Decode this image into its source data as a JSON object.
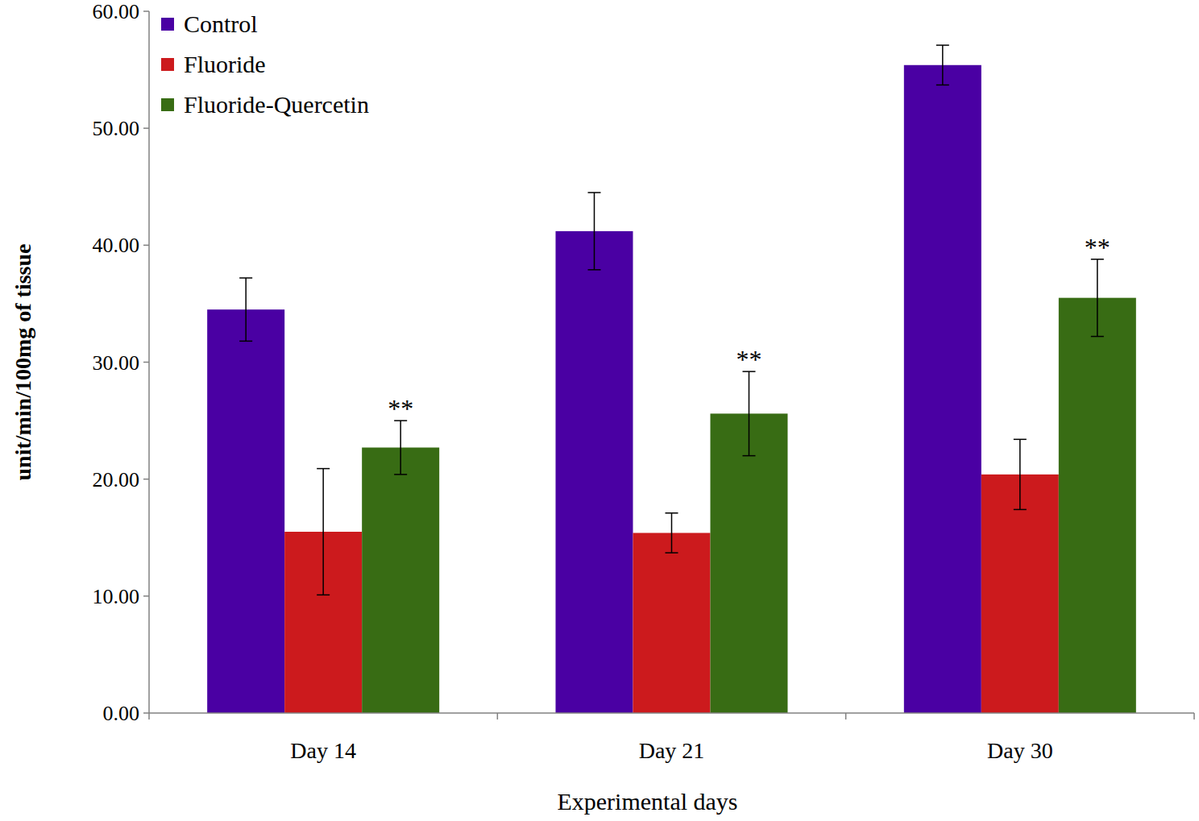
{
  "chart_data": {
    "type": "bar",
    "x_label": "Experimental days",
    "y_label": "unit/min/100mg of tissue",
    "categories": [
      "Day 14",
      "Day 21",
      "Day 30"
    ],
    "series": [
      {
        "name": "Control",
        "color": "#4a00a3",
        "values": [
          34.5,
          41.2,
          55.4
        ],
        "errors": [
          2.7,
          3.3,
          1.7
        ]
      },
      {
        "name": "Fluoride",
        "color": "#cc1a1d",
        "values": [
          15.5,
          15.4,
          20.4
        ],
        "errors": [
          5.4,
          1.7,
          3.0
        ]
      },
      {
        "name": "Fluoride-Quercetin",
        "color": "#386c14",
        "values": [
          22.7,
          25.6,
          35.5
        ],
        "errors": [
          2.3,
          3.6,
          3.3
        ],
        "annotations": [
          "**",
          "**",
          "**"
        ]
      }
    ],
    "ylim": [
      0,
      60
    ],
    "yticks": [
      {
        "value": 0,
        "label": "0.00"
      },
      {
        "value": 10,
        "label": "10.00"
      },
      {
        "value": 20,
        "label": "20.00"
      },
      {
        "value": 30,
        "label": "30.00"
      },
      {
        "value": 40,
        "label": "40.00"
      },
      {
        "value": 50,
        "label": "50.00"
      },
      {
        "value": 60,
        "label": "60.00"
      }
    ],
    "grid": false,
    "legend": "upper left"
  }
}
